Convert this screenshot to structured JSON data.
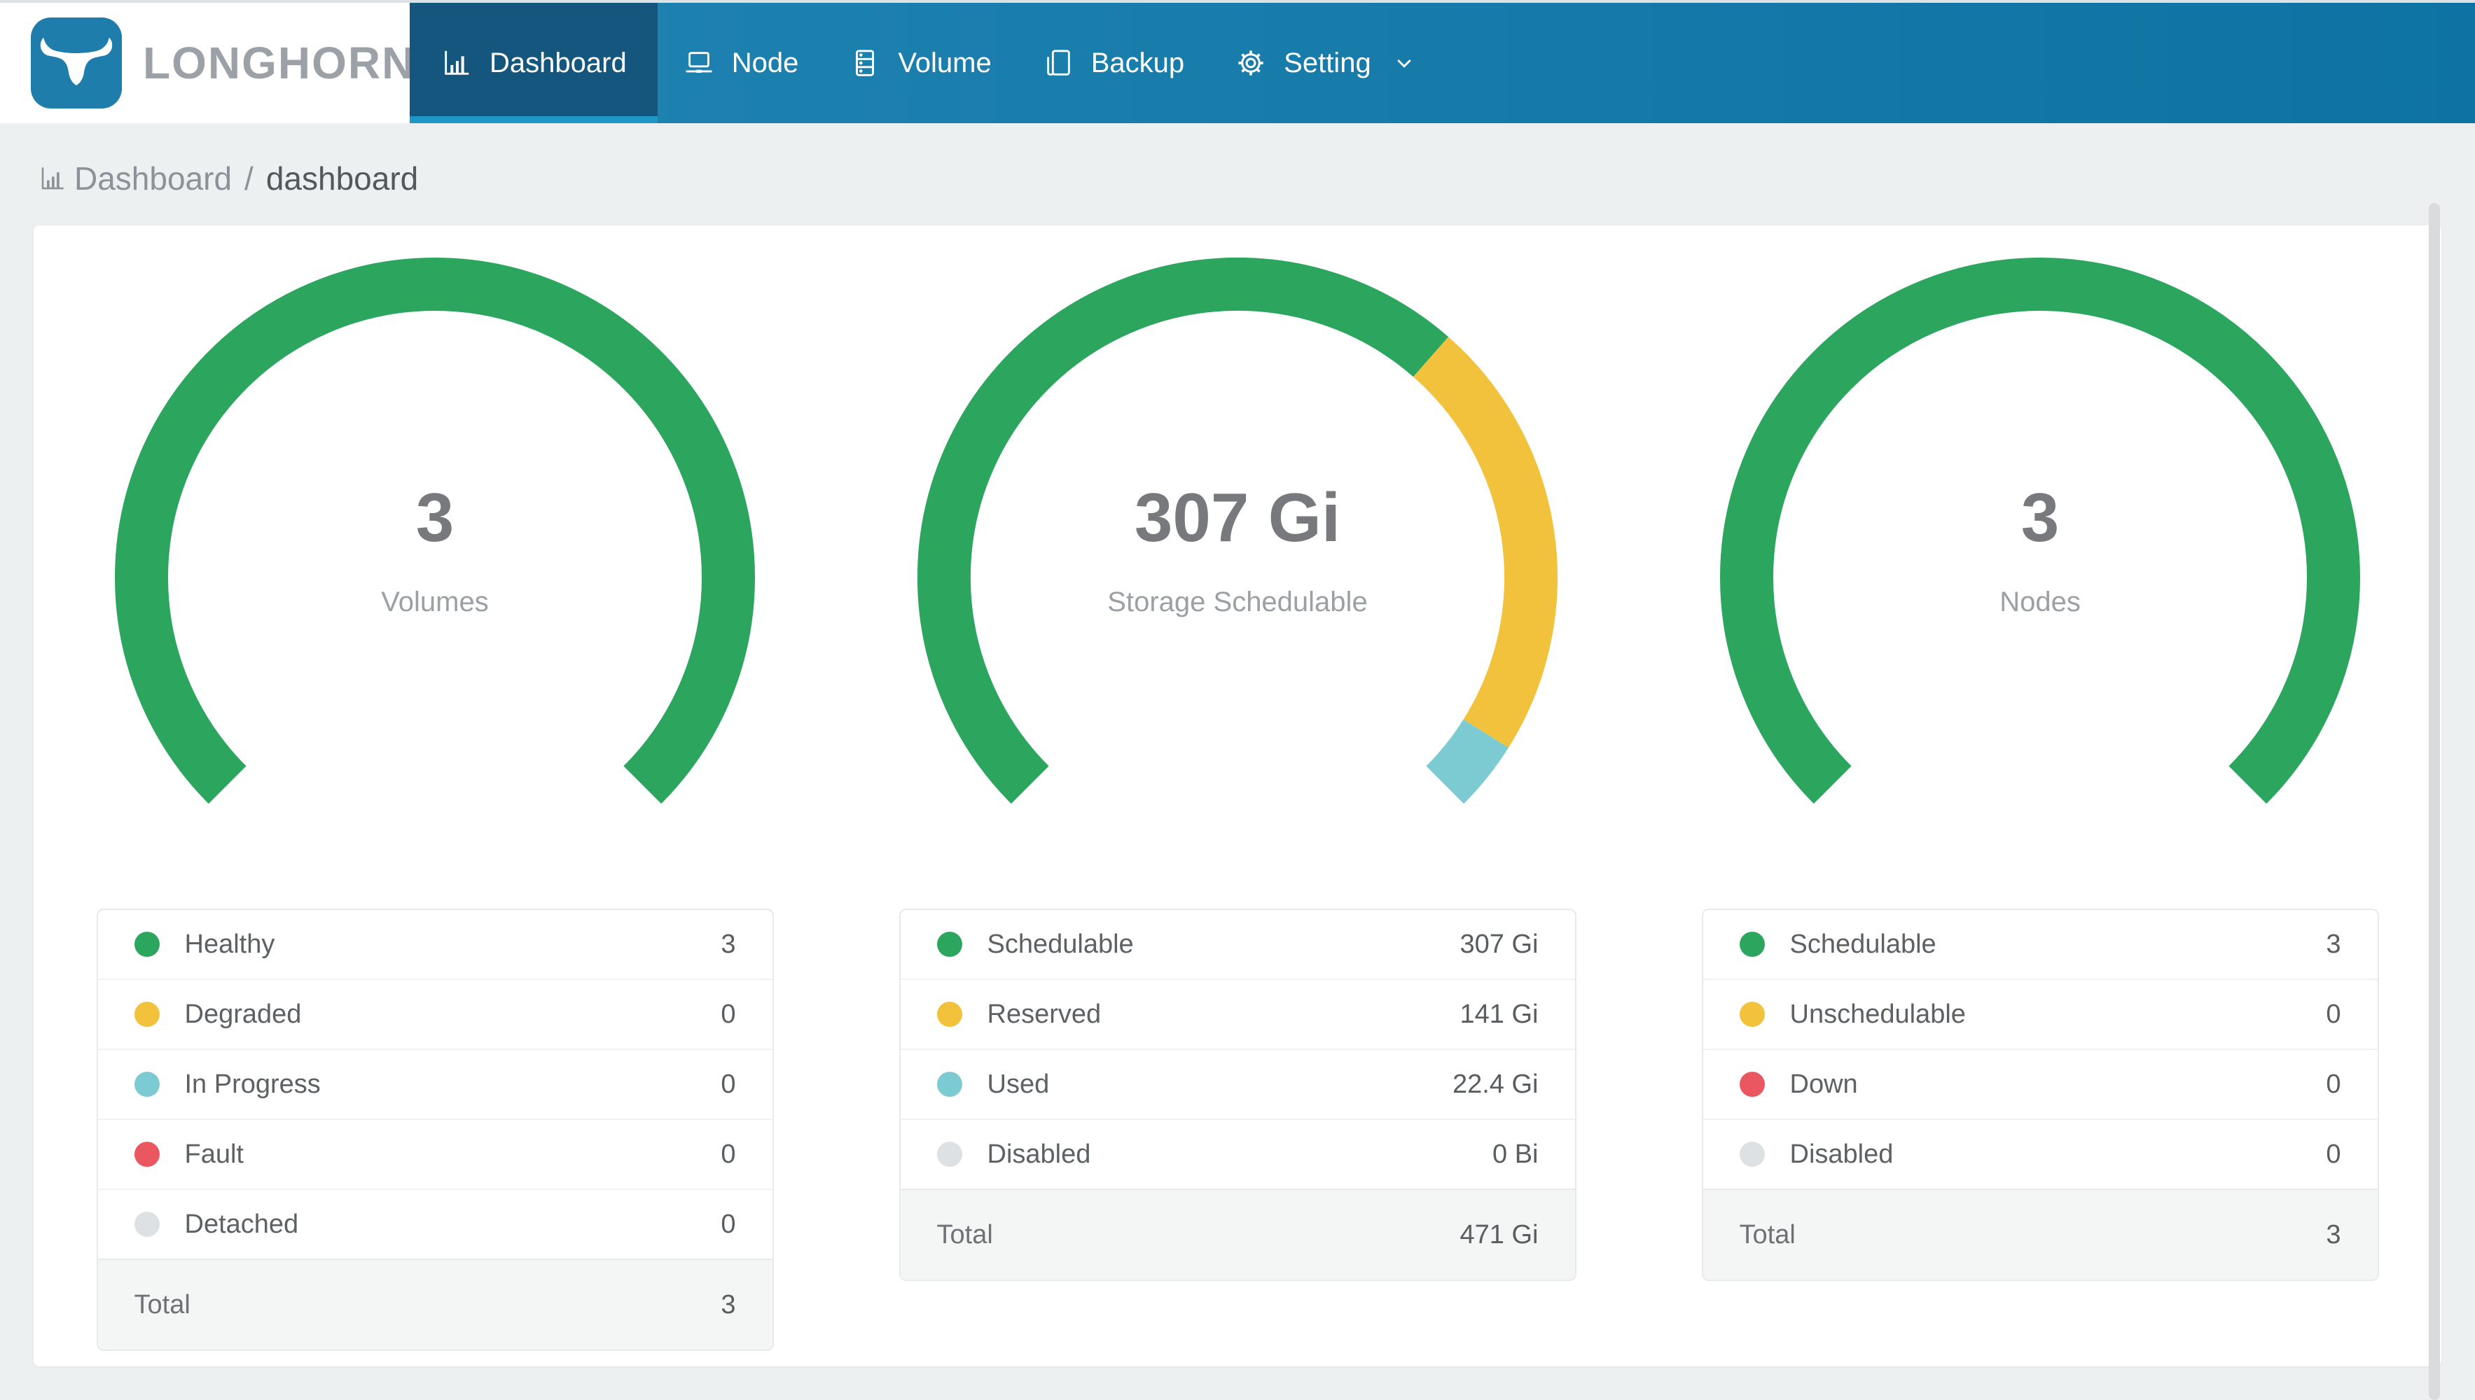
{
  "app": {
    "name": "LONGHORN",
    "logo_icon": "bull-logo-icon"
  },
  "colors": {
    "nav_gradient_start": "#2386B5",
    "nav_gradient_end": "#0E73A2",
    "nav_active_bg": "#14567E",
    "nav_active_underline": "#1E96C6",
    "brand_logo_bg": "#1F7DAB",
    "page_bg": "#EDF0F1",
    "card_bg": "#FFFFFF",
    "status_green": "#2CA65E",
    "status_yellow": "#F2C23C",
    "status_teal": "#7DCBD2",
    "status_red": "#EB5760",
    "status_gray": "#DEE1E4",
    "text_primary": "#595D60",
    "text_muted": "#9BA0A5"
  },
  "nav": {
    "items": [
      {
        "label": "Dashboard",
        "icon": "bar-chart-icon",
        "active": true
      },
      {
        "label": "Node",
        "icon": "laptop-icon",
        "active": false
      },
      {
        "label": "Volume",
        "icon": "server-icon",
        "active": false
      },
      {
        "label": "Backup",
        "icon": "copy-icon",
        "active": false
      },
      {
        "label": "Setting",
        "icon": "gear-icon",
        "active": false,
        "caret": "chevron-down-icon"
      }
    ]
  },
  "breadcrumb": {
    "icon": "bar-chart-icon",
    "section": "Dashboard",
    "separator": "/",
    "page": "dashboard"
  },
  "chart_data": [
    {
      "type": "gauge",
      "center_value": "3",
      "center_label": "Volumes",
      "start_angle_deg": 225,
      "sweep_deg": 270,
      "segments": [
        {
          "label": "Healthy",
          "value": 3,
          "display": "3",
          "color": "#2CA65E"
        },
        {
          "label": "Degraded",
          "value": 0,
          "display": "0",
          "color": "#F2C23C"
        },
        {
          "label": "In Progress",
          "value": 0,
          "display": "0",
          "color": "#7DCBD2"
        },
        {
          "label": "Fault",
          "value": 0,
          "display": "0",
          "color": "#EB5760"
        },
        {
          "label": "Detached",
          "value": 0,
          "display": "0",
          "color": "#DEE1E4"
        }
      ],
      "total": {
        "label": "Total",
        "display": "3"
      }
    },
    {
      "type": "gauge",
      "center_value": "307 Gi",
      "center_label": "Storage Schedulable",
      "start_angle_deg": 225,
      "sweep_deg": 270,
      "segments": [
        {
          "label": "Schedulable",
          "value": 307,
          "display": "307 Gi",
          "color": "#2CA65E"
        },
        {
          "label": "Reserved",
          "value": 141,
          "display": "141 Gi",
          "color": "#F2C23C"
        },
        {
          "label": "Used",
          "value": 22.4,
          "display": "22.4 Gi",
          "color": "#7DCBD2"
        },
        {
          "label": "Disabled",
          "value": 0,
          "display": "0 Bi",
          "color": "#DEE1E4"
        }
      ],
      "total": {
        "label": "Total",
        "display": "471 Gi"
      }
    },
    {
      "type": "gauge",
      "center_value": "3",
      "center_label": "Nodes",
      "start_angle_deg": 225,
      "sweep_deg": 270,
      "segments": [
        {
          "label": "Schedulable",
          "value": 3,
          "display": "3",
          "color": "#2CA65E"
        },
        {
          "label": "Unschedulable",
          "value": 0,
          "display": "0",
          "color": "#F2C23C"
        },
        {
          "label": "Down",
          "value": 0,
          "display": "0",
          "color": "#EB5760"
        },
        {
          "label": "Disabled",
          "value": 0,
          "display": "0",
          "color": "#DEE1E4"
        }
      ],
      "total": {
        "label": "Total",
        "display": "3"
      }
    }
  ]
}
